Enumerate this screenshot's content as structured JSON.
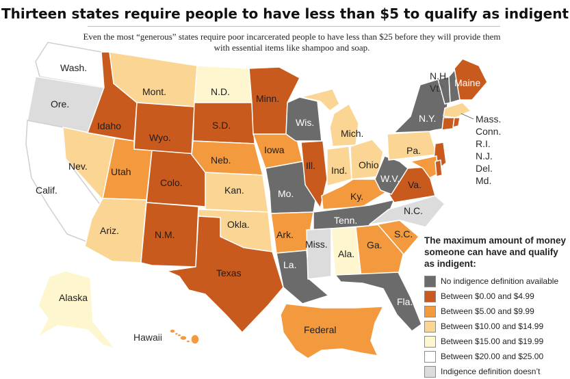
{
  "title": "Thirteen states require people to have less than $5 to qualify as indigent",
  "subtitle": "Even the most “generous” states require poor incarcerated people to have less than $25 before they will provide them with essential items like shampoo and soap.",
  "colors": {
    "none": "#6b6b6b",
    "c0": "#c95a1e",
    "c5": "#f39a3f",
    "c10": "#fbd594",
    "c15": "#fdf6cf",
    "c20": "#ffffff",
    "undefined": "#dcdcdc"
  },
  "states": {
    "wa": "Wash.",
    "or": "Ore.",
    "ca": "Calif.",
    "nv": "Nev.",
    "id": "Idaho",
    "mt": "Mont.",
    "wy": "Wyo.",
    "ut": "Utah",
    "az": "Ariz.",
    "co": "Colo.",
    "nm": "N.M.",
    "nd": "N.D.",
    "sd": "S.D.",
    "ne": "Neb.",
    "ks": "Kan.",
    "ok": "Okla.",
    "tx": "Texas",
    "mn": "Minn.",
    "ia": "Iowa",
    "mo": "Mo.",
    "ar": "Ark.",
    "la": "La.",
    "wi": "Wis.",
    "il": "Ill.",
    "mi": "Mich.",
    "in": "Ind.",
    "oh": "Ohio",
    "ky": "Ky.",
    "tn": "Tenn.",
    "ms": "Miss.",
    "al": "Ala.",
    "ga": "Ga.",
    "fl": "Fla.",
    "sc": "S.C.",
    "nc": "N.C.",
    "va": "Va.",
    "wv": "W.V.",
    "pa": "Pa.",
    "ny": "N.Y.",
    "me": "Maine",
    "ak": "Alaska",
    "hi": "Hawaii",
    "federal": "Federal"
  },
  "notes": {
    "nh_vt": [
      "N.H.",
      "Vt."
    ],
    "ne_small": [
      "Mass.",
      "Conn.",
      "R.I.",
      "N.J.",
      "Del.",
      "Md."
    ]
  },
  "legend": {
    "title": "The maximum amount of money someone can have and qualify as indigent:",
    "items": [
      {
        "label": "No indigence definition available",
        "color": "#6b6b6b"
      },
      {
        "label": "Between $0.00 and $4.99",
        "color": "#c95a1e"
      },
      {
        "label": "Between $5.00 and $9.99",
        "color": "#f39a3f"
      },
      {
        "label": "Between $10.00 and $14.99",
        "color": "#fbd594"
      },
      {
        "label": "Between $15.00 and $19.99",
        "color": "#fdf6cf"
      },
      {
        "label": "Between $20.00 and $25.00",
        "color": "#ffffff"
      },
      {
        "label": "Indigence definition doesn’t",
        "color": "#dcdcdc"
      }
    ]
  }
}
